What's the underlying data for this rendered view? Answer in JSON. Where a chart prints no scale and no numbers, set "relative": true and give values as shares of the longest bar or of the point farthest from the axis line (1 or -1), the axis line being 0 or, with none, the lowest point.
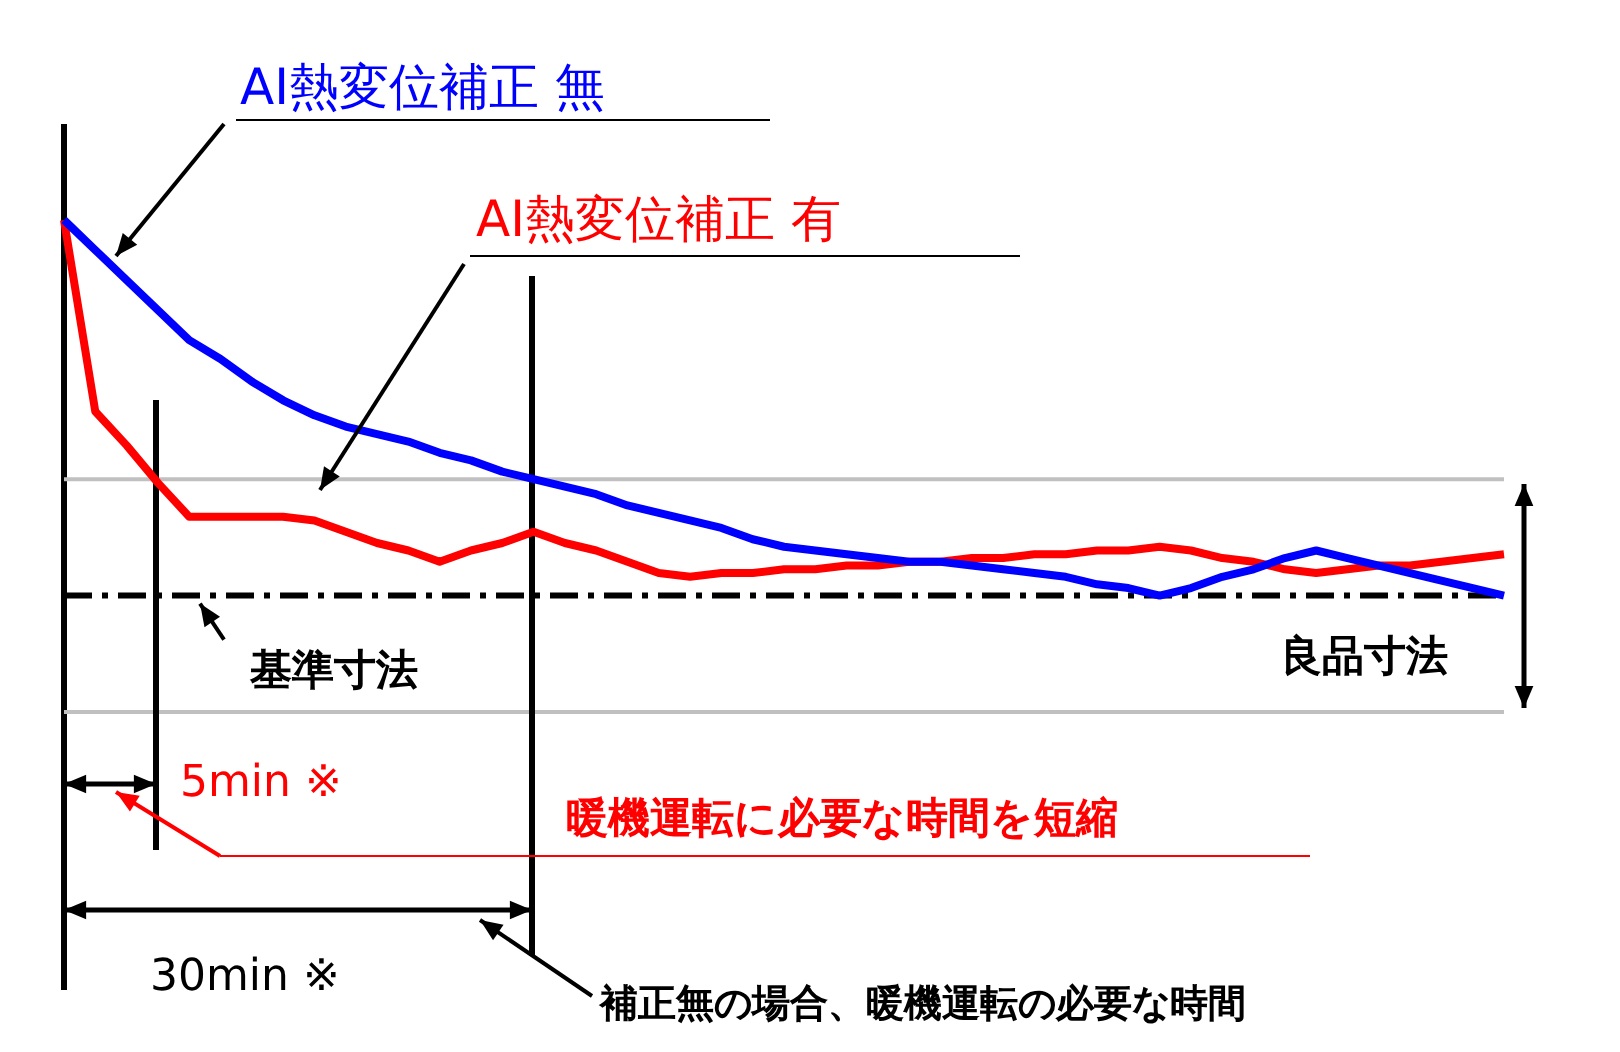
{
  "chart_data": {
    "type": "line",
    "relative": true,
    "marker": "none",
    "categories": [
      null,
      null,
      null,
      null,
      null,
      null,
      null,
      null,
      null,
      null,
      null,
      null,
      null,
      null,
      null,
      null,
      null,
      null,
      null,
      null,
      null,
      null,
      null,
      null,
      null,
      null,
      null,
      null,
      null,
      null,
      null,
      null,
      null,
      null,
      null,
      null,
      null,
      null,
      null,
      null,
      null,
      null,
      null,
      null,
      null,
      null,
      null
    ],
    "series": [
      {
        "name": "AI熱変位補正 無",
        "color": "#0000ff",
        "values": [
          1,
          0.92,
          0.84,
          0.76,
          0.68,
          0.63,
          0.57,
          0.52,
          0.48,
          0.45,
          0.43,
          0.41,
          0.38,
          0.36,
          0.33,
          0.31,
          0.29,
          0.27,
          0.24,
          0.22,
          0.2,
          0.18,
          0.15,
          0.13,
          0.12,
          0.11,
          0.1,
          0.09,
          0.09,
          0.08,
          0.07,
          0.06,
          0.05,
          0.03,
          0.02,
          0,
          0.02,
          0.05,
          0.07,
          0.1,
          0.12,
          0.1,
          0.08,
          0.06,
          0.04,
          0.02,
          0
        ]
      },
      {
        "name": "AI熱変位補正 有",
        "color": "#ff0000",
        "values": [
          1,
          0.49,
          0.4,
          0.3,
          0.21,
          0.21,
          0.21,
          0.21,
          0.2,
          0.17,
          0.14,
          0.12,
          0.09,
          0.12,
          0.14,
          0.17,
          0.14,
          0.12,
          0.09,
          0.06,
          0.05,
          0.06,
          0.06,
          0.07,
          0.07,
          0.08,
          0.08,
          0.09,
          0.09,
          0.1,
          0.1,
          0.11,
          0.11,
          0.12,
          0.12,
          0.13,
          0.12,
          0.1,
          0.09,
          0.07,
          0.06,
          0.07,
          0.08,
          0.08,
          0.09,
          0.1,
          0.11
        ]
      }
    ],
    "ref_lines": [
      {
        "axis": "y",
        "value": 0,
        "label": "基準寸法",
        "line_style": "dashed",
        "color": "#000000"
      },
      {
        "axis": "y",
        "value": 0.31,
        "color": "#c0c0c0"
      },
      {
        "axis": "y",
        "value": -0.31,
        "color": "#c0c0c0"
      }
    ],
    "annotations": [
      "5min ※",
      "30min ※",
      "暖機運転に必要な時間を短縮",
      "補正無の場合、暖機運転の必要な時間",
      "良品寸法"
    ]
  }
}
